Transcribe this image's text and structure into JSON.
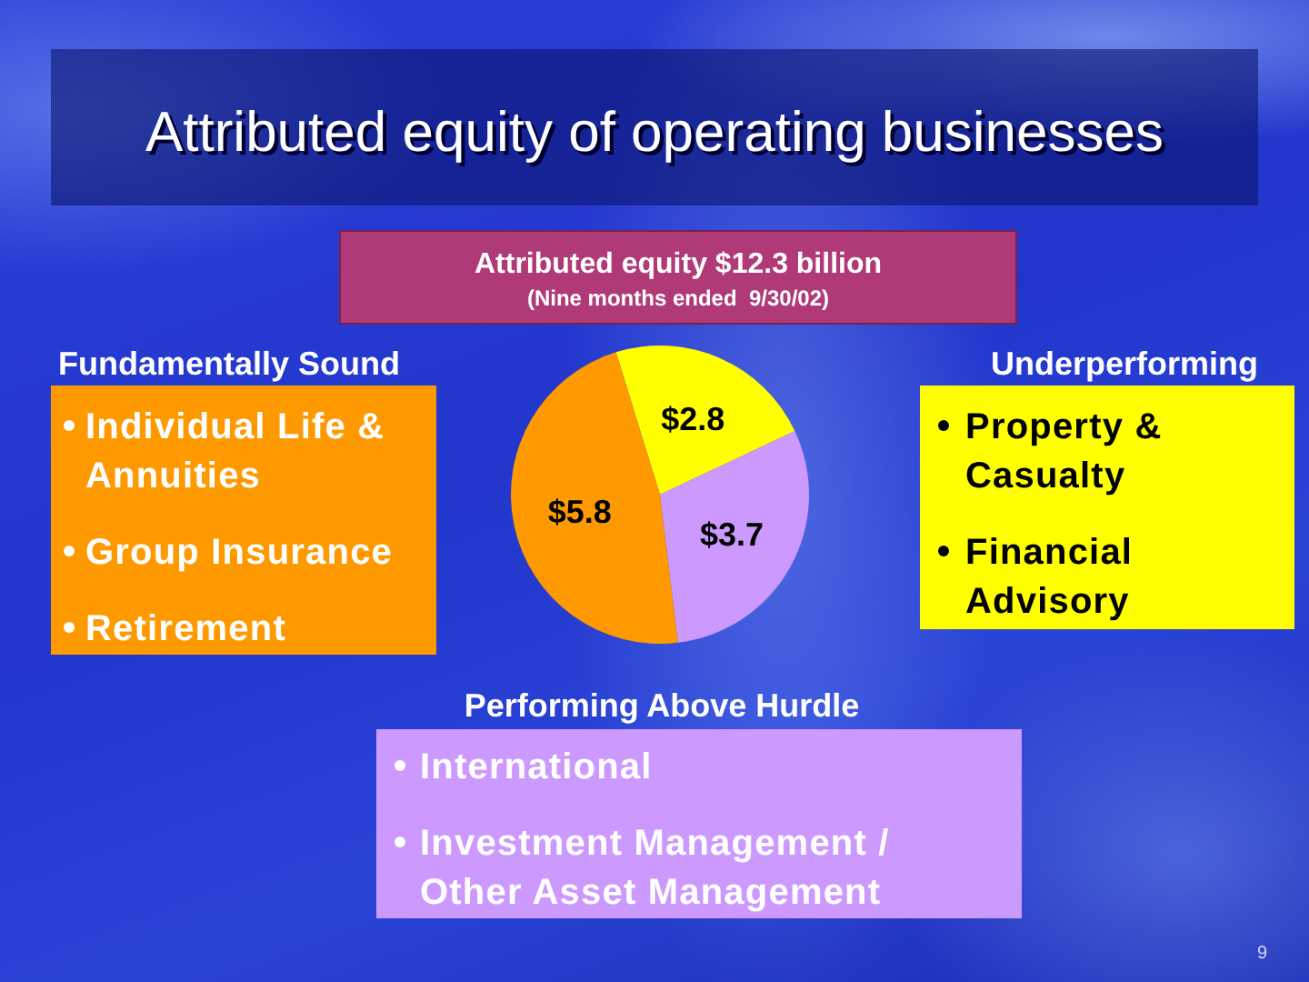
{
  "chart_data": {
    "type": "pie",
    "title": "Attributed equity of operating businesses",
    "subtitle": "Attributed equity $12.3 billion\n(Nine months ended  9/30/02)",
    "categories": [
      null,
      null,
      null
    ],
    "values": [
      2.8,
      3.7,
      5.8
    ],
    "colors": [
      "#ffff00",
      "#cc99ff",
      "#ff9900"
    ],
    "value_labels": [
      "$2.8",
      "$3.7",
      "$5.8"
    ],
    "annotations": [
      "Underperforming",
      "Property & Casualty\nFinancial Advisory",
      "Performing Above Hurdle",
      "International\nInvestment Management / Other Asset Management",
      "Fundamentally Sound",
      "Individual Life & Annuities\nGroup Insurance\nRetirement",
      "9"
    ]
  }
}
